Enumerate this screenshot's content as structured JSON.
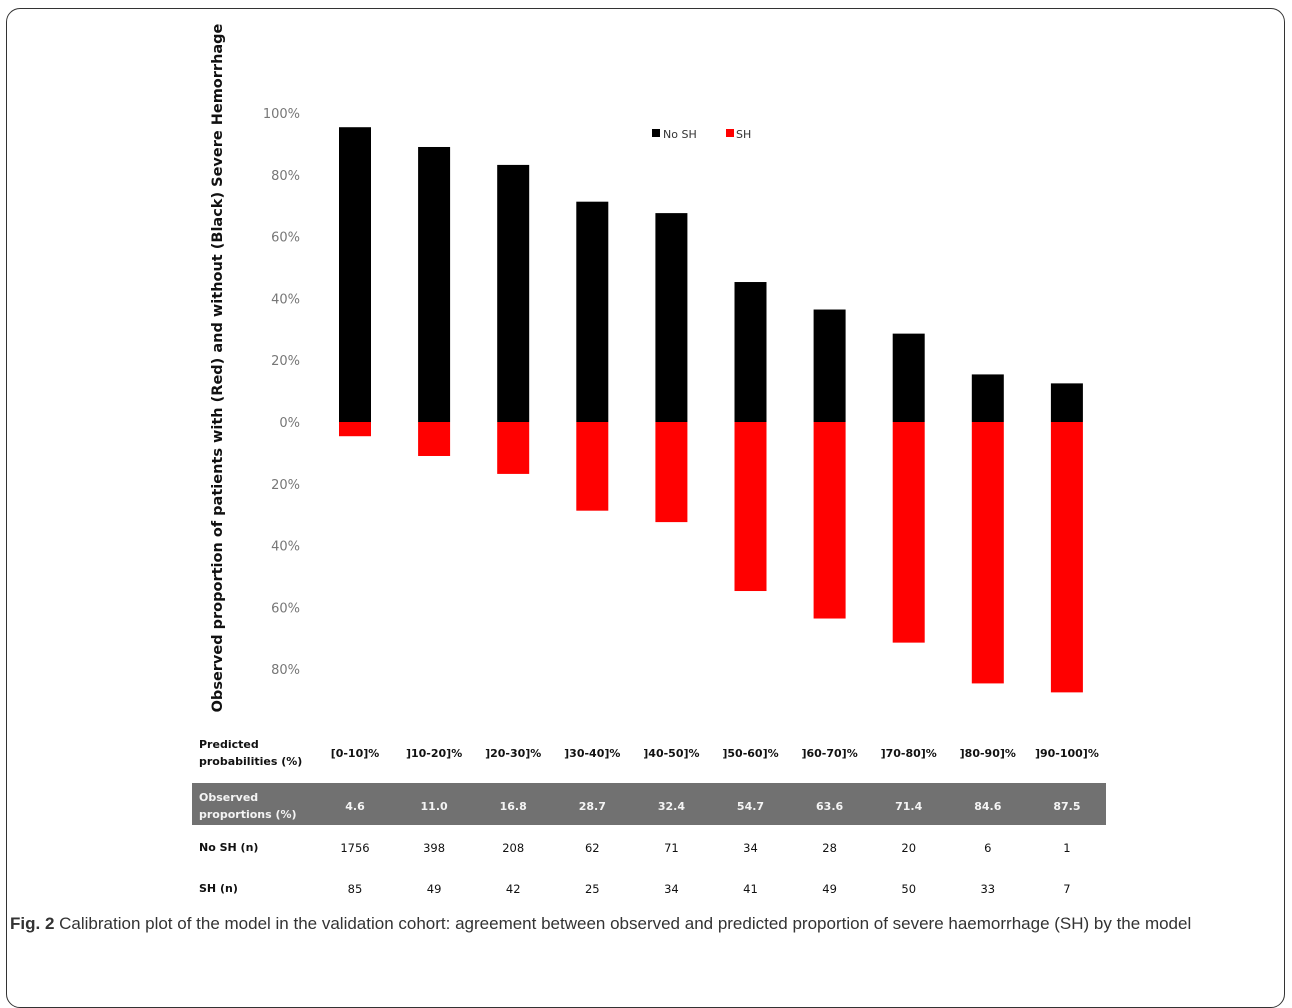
{
  "caption": {
    "label": "Fig. 2",
    "text": " Calibration plot of the model in the validation cohort: agreement between observed and predicted proportion of severe haemorrhage (SH) by the model"
  },
  "chart_data": {
    "type": "bar",
    "ylabel": "Observed proportion of patients with (Red) and without (Black) Severe Hemorrhage",
    "yticks_above": [
      "100%",
      "80%",
      "60%",
      "40%",
      "20%",
      "0%"
    ],
    "yticks_below": [
      "20%",
      "40%",
      "60%",
      "80%"
    ],
    "ylim": [
      -90,
      100
    ],
    "legend": {
      "placement": "top-right",
      "entries": [
        {
          "name": "No SH",
          "color": "#000000"
        },
        {
          "name": "SH",
          "color": "#ff0000"
        }
      ]
    },
    "categories": [
      "[0-10]%",
      "]10-20]%",
      "]20-30]%",
      "]30-40]%",
      "]40-50]%",
      "]50-60]%",
      "]60-70]%",
      "]70-80]%",
      "]80-90]%",
      "]90-100]%"
    ],
    "series": [
      {
        "name": "No SH",
        "color": "#000000",
        "values": [
          95.4,
          89.0,
          83.2,
          71.3,
          67.6,
          45.3,
          36.4,
          28.6,
          15.4,
          12.5
        ]
      },
      {
        "name": "SH",
        "color": "#ff0000",
        "values": [
          4.6,
          11.0,
          16.8,
          28.7,
          32.4,
          54.7,
          63.6,
          71.4,
          84.6,
          87.5
        ]
      }
    ],
    "table": {
      "rows": [
        {
          "label_lines": [
            "Predicted",
            "probabilities (%)"
          ],
          "shaded": false,
          "values": [
            "[0-10]%",
            "]10-20]%",
            "]20-30]%",
            "]30-40]%",
            "]40-50]%",
            "]50-60]%",
            "]60-70]%",
            "]70-80]%",
            "]80-90]%",
            "]90-100]%"
          ]
        },
        {
          "label_lines": [
            "Observed",
            "proportions (%)"
          ],
          "shaded": true,
          "values": [
            "4.6",
            "11.0",
            "16.8",
            "28.7",
            "32.4",
            "54.7",
            "63.6",
            "71.4",
            "84.6",
            "87.5"
          ]
        },
        {
          "label_lines": [
            "No SH (n)"
          ],
          "shaded": false,
          "values": [
            "1756",
            "398",
            "208",
            "62",
            "71",
            "34",
            "28",
            "20",
            "6",
            "1"
          ]
        },
        {
          "label_lines": [
            "SH (n)"
          ],
          "shaded": false,
          "values": [
            "85",
            "49",
            "42",
            "25",
            "34",
            "41",
            "49",
            "50",
            "33",
            "7"
          ]
        }
      ]
    }
  }
}
